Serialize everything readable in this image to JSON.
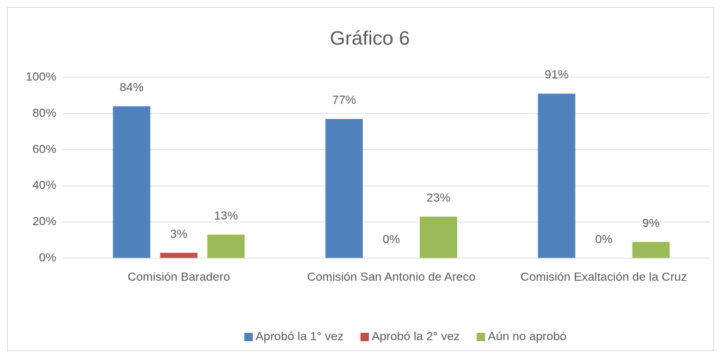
{
  "chart_data": {
    "type": "bar",
    "title": "Gráfico 6",
    "categories": [
      "Comisión Baradero",
      "Comisión San Antonio de Areco",
      "Comisión Exaltación de la Cruz"
    ],
    "series": [
      {
        "name": "Aprobó la 1° vez",
        "color": "#4f81bd",
        "values": [
          84,
          77,
          91
        ],
        "value_labels": [
          "84%",
          "77%",
          "91%"
        ]
      },
      {
        "name": "Aprobó la 2° vez",
        "color": "#c0504d",
        "values": [
          3,
          0,
          0
        ],
        "value_labels": [
          "3%",
          "0%",
          "0%"
        ]
      },
      {
        "name": "Aún no aprobó",
        "color": "#9bbb59",
        "values": [
          13,
          23,
          9
        ],
        "value_labels": [
          "13%",
          "23%",
          "9%"
        ]
      }
    ],
    "ylim": [
      0,
      100
    ],
    "yticks": [
      {
        "value": 0,
        "label": "0%"
      },
      {
        "value": 20,
        "label": "20%"
      },
      {
        "value": 40,
        "label": "40%"
      },
      {
        "value": 60,
        "label": "60%"
      },
      {
        "value": 80,
        "label": "80%"
      },
      {
        "value": 100,
        "label": "100%"
      }
    ],
    "grid": true,
    "legend": "bottom"
  }
}
